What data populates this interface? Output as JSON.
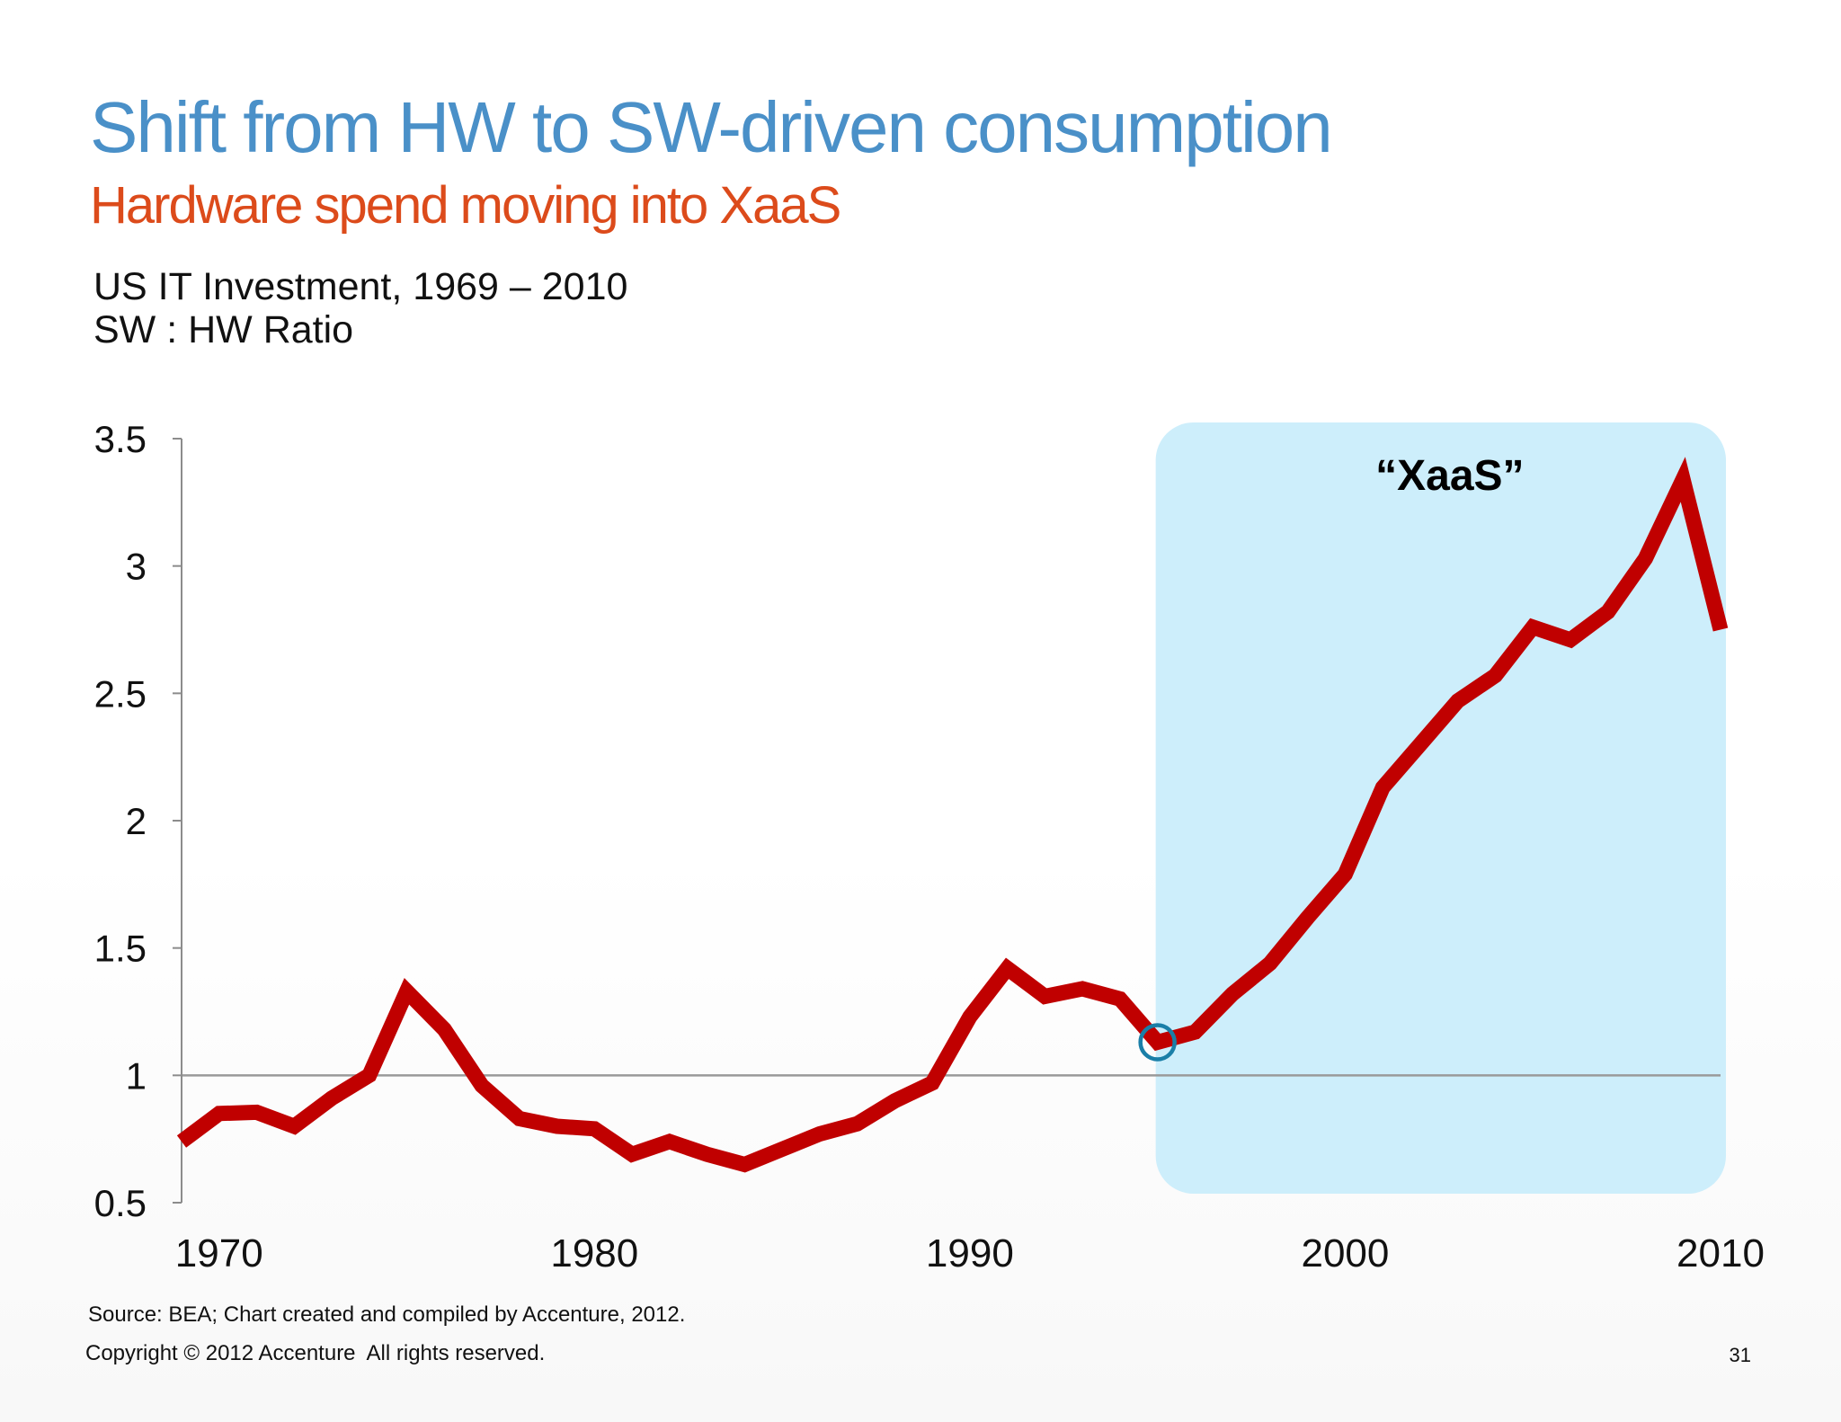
{
  "slide": {
    "title": "Shift from HW to SW-driven consumption",
    "subtitle": "Hardware spend moving into XaaS",
    "chart_heading_line1": "US IT Investment, 1969 – 2010",
    "chart_heading_line2": "SW : HW Ratio",
    "source": "Source: BEA; Chart created and compiled by Accenture, 2012.",
    "copyright": "Copyright © 2012 Accenture  All rights reserved.",
    "page_number": "31"
  },
  "colors": {
    "title": "#4a90c8",
    "subtitle": "#dc4b1b",
    "line": "#c00000",
    "highlight_fill": "#cdeefb",
    "marker": "#1a7fa8",
    "reference_line": "#9a9a9a",
    "axis": "#8c8c8c"
  },
  "chart_data": {
    "type": "line",
    "title": "US IT Investment, 1969 – 2010",
    "ylabel": "SW : HW Ratio",
    "xlabel": "",
    "xlim": [
      1969,
      2010
    ],
    "ylim": [
      0.5,
      3.5
    ],
    "yticks": [
      "3.5",
      "3",
      "2.5",
      "2",
      "1.5",
      "1",
      "0.5"
    ],
    "ytick_values": [
      3.5,
      3,
      2.5,
      2,
      1.5,
      1,
      0.5
    ],
    "xticks": [
      "1970",
      "1980",
      "1990",
      "2000",
      "2010"
    ],
    "xtick_values": [
      1970,
      1980,
      1990,
      2000,
      2010
    ],
    "grid": false,
    "reference_line": 1,
    "series": [
      {
        "x": [
          1969,
          1970,
          1971,
          1972,
          1973,
          1974,
          1975,
          1976,
          1977,
          1978,
          1979,
          1980,
          1981,
          1982,
          1983,
          1984,
          1985,
          1986,
          1987,
          1988,
          1989,
          1990,
          1991,
          1992,
          1993,
          1994,
          1995,
          1996,
          1997,
          1998,
          1999,
          2000,
          2001,
          2002,
          2003,
          2004,
          2005,
          2006,
          2007,
          2008,
          2009,
          2010
        ],
        "values": [
          0.74,
          0.85,
          0.855,
          0.8,
          0.91,
          1.0,
          1.33,
          1.18,
          0.96,
          0.83,
          0.8,
          0.79,
          0.69,
          0.74,
          0.69,
          0.65,
          0.71,
          0.77,
          0.81,
          0.9,
          0.97,
          1.23,
          1.42,
          1.31,
          1.34,
          1.3,
          1.13,
          1.17,
          1.32,
          1.44,
          1.62,
          1.79,
          2.13,
          2.3,
          2.47,
          2.57,
          2.76,
          2.71,
          2.82,
          3.03,
          3.34,
          2.75
        ]
      }
    ],
    "highlight_region": {
      "label": "“XaaS”",
      "x_start": 1995,
      "x_end": 2010
    },
    "marker": {
      "x": 1995,
      "value": 1.13
    }
  }
}
